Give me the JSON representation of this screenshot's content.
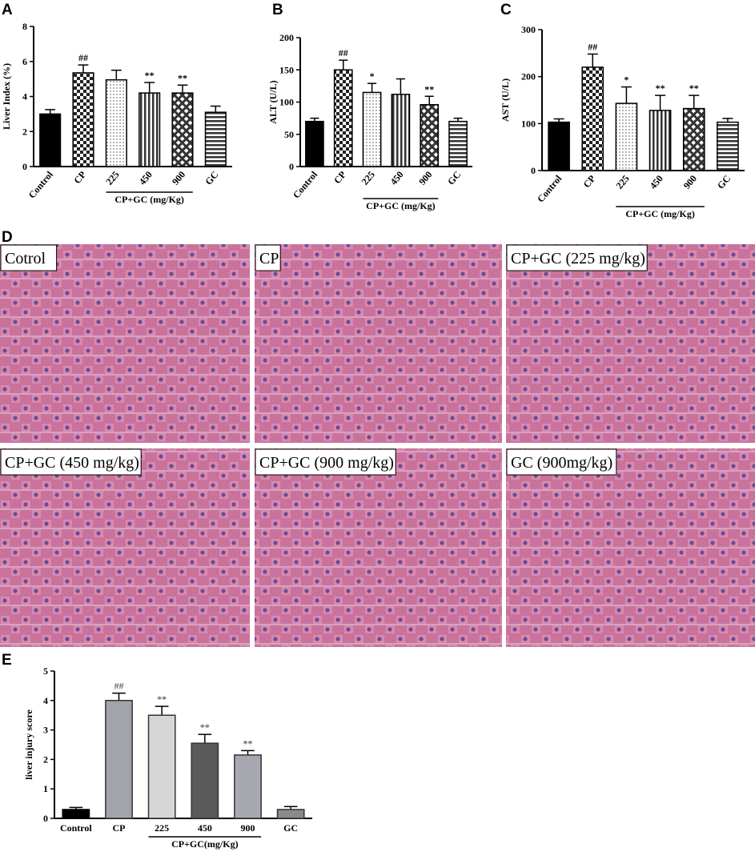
{
  "chart_data": [
    {
      "type": "bar",
      "panel_label": "A",
      "ylabel": "Liver Index (%)",
      "group_label": "CP+GC (mg/Kg)",
      "categories": [
        "Control",
        "CP",
        "225",
        "450",
        "900",
        "GC"
      ],
      "values": [
        3.0,
        5.35,
        4.95,
        4.2,
        4.2,
        3.1
      ],
      "errors": [
        0.25,
        0.45,
        0.55,
        0.6,
        0.45,
        0.35
      ],
      "annotations": [
        null,
        "##",
        null,
        "**",
        "**",
        null
      ],
      "patterns": [
        "solid",
        "checker",
        "dots",
        "vstripes",
        "diamond",
        "hstripes"
      ],
      "colors": [
        "#000000",
        "#000000",
        "#000000",
        "#000000",
        "#000000",
        "#000000"
      ],
      "ylim": [
        0,
        8
      ],
      "yticks": [
        0,
        2,
        4,
        6,
        8
      ]
    },
    {
      "type": "bar",
      "panel_label": "B",
      "ylabel": "ALT (U/L)",
      "group_label": "CP+GC (mg/Kg)",
      "categories": [
        "Control",
        "CP",
        "225",
        "450",
        "900",
        "GC"
      ],
      "values": [
        70,
        150,
        115,
        112,
        96,
        70
      ],
      "errors": [
        5,
        15,
        14,
        24,
        13,
        5
      ],
      "annotations": [
        null,
        "##",
        "*",
        null,
        "**",
        null
      ],
      "patterns": [
        "solid",
        "checker",
        "dots",
        "vstripes",
        "diamond",
        "hstripes"
      ],
      "colors": [
        "#000000",
        "#000000",
        "#000000",
        "#000000",
        "#000000",
        "#000000"
      ],
      "ylim": [
        0,
        200
      ],
      "yticks": [
        0,
        50,
        100,
        150,
        200
      ]
    },
    {
      "type": "bar",
      "panel_label": "C",
      "ylabel": "AST (U/L)",
      "group_label": "CP+GC (mg/Kg)",
      "categories": [
        "Control",
        "CP",
        "225",
        "450",
        "900",
        "GC"
      ],
      "values": [
        103,
        220,
        143,
        128,
        132,
        103
      ],
      "errors": [
        7,
        28,
        35,
        32,
        28,
        8
      ],
      "annotations": [
        null,
        "##",
        "*",
        "**",
        "**",
        null
      ],
      "patterns": [
        "solid",
        "checker",
        "dots",
        "vstripes",
        "diamond",
        "hstripes"
      ],
      "colors": [
        "#000000",
        "#000000",
        "#000000",
        "#000000",
        "#000000",
        "#000000"
      ],
      "ylim": [
        0,
        300
      ],
      "yticks": [
        0,
        100,
        200,
        300
      ]
    },
    {
      "type": "bar",
      "panel_label": "E",
      "ylabel": "liver injury score",
      "group_label": "CP+GC(mg/Kg)",
      "categories": [
        "Control",
        "CP",
        "225",
        "450",
        "900",
        "GC"
      ],
      "values": [
        0.3,
        4.0,
        3.5,
        2.55,
        2.15,
        0.3
      ],
      "errors": [
        0.07,
        0.25,
        0.3,
        0.3,
        0.15,
        0.1
      ],
      "annotations": [
        null,
        "##",
        "**",
        "**",
        "**",
        null
      ],
      "patterns": [
        "solid",
        "solid",
        "solid",
        "solid",
        "solid",
        "solid"
      ],
      "colors": [
        "#000000",
        "#a3a3ab",
        "#d6d6d6",
        "#5a5a5a",
        "#a8a8b0",
        "#8a8a8a"
      ],
      "ylim": [
        0,
        5
      ],
      "yticks": [
        0,
        1,
        2,
        3,
        4,
        5
      ]
    }
  ],
  "histology": {
    "panel_label": "D",
    "panels": [
      "Cotrol",
      "CP",
      "CP+GC (225 mg/kg)",
      "CP+GC (450 mg/kg)",
      "CP+GC (900 mg/kg)",
      "GC (900mg/kg)"
    ]
  }
}
